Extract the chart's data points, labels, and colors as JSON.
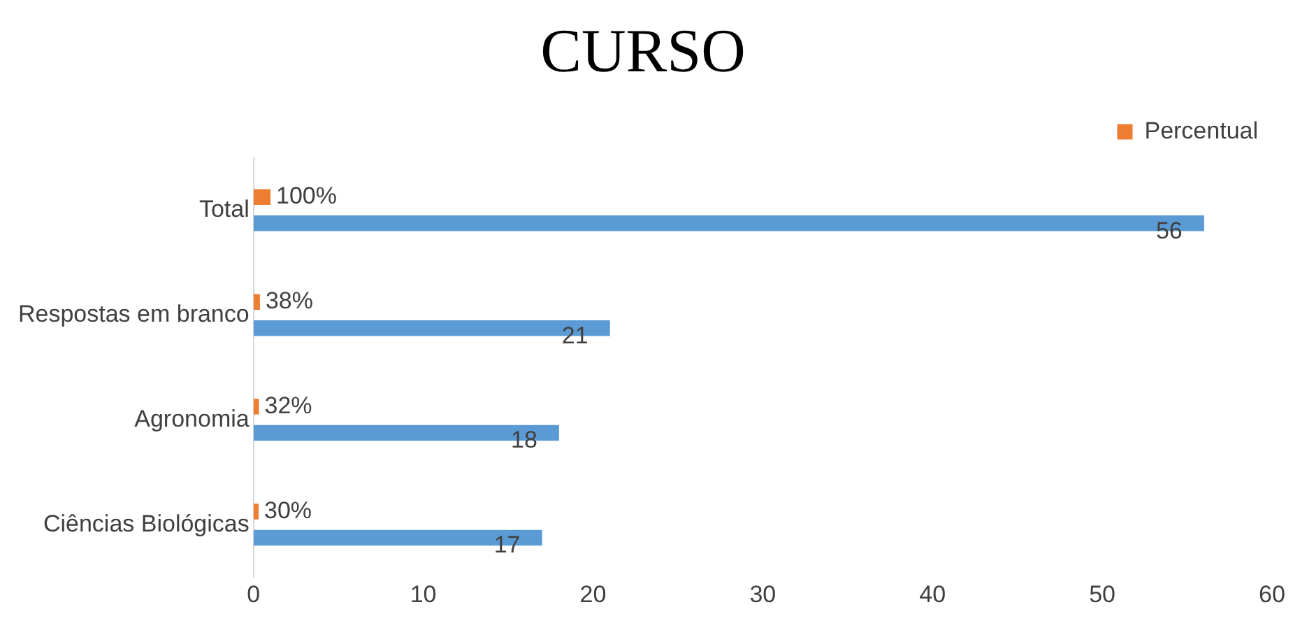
{
  "chart_data": {
    "type": "bar",
    "title": "CURSO",
    "orientation": "horizontal",
    "categories": [
      "Total",
      "Respostas em branco",
      "Agronomia",
      "Ciências Biológicas"
    ],
    "series": [
      {
        "name": "Percentual",
        "color": "#ed7d31",
        "values": [
          1,
          0.38,
          0.32,
          0.3
        ],
        "value_labels": [
          "100%",
          "38%",
          "32%",
          "30%"
        ]
      },
      {
        "color": "#5b9bd5",
        "values": [
          56,
          21,
          18,
          17
        ],
        "value_labels": [
          "56",
          "21",
          "18",
          "17"
        ]
      }
    ],
    "xlim": [
      0,
      60
    ],
    "xticks": [
      0,
      10,
      20,
      30,
      40,
      50,
      60
    ],
    "grid": false,
    "legend": "top right"
  }
}
